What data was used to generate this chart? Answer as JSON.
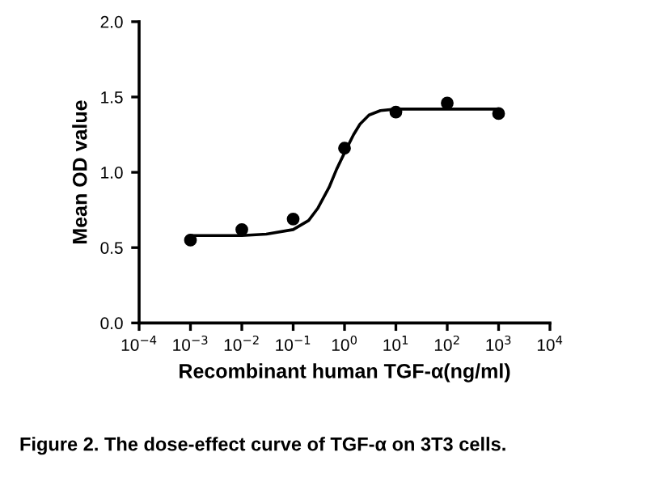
{
  "chart_data": {
    "type": "scatter",
    "title": "Figure 2. The dose-effect curve of TGF-α on 3T3 cells.",
    "xlabel": "Recombinant human TGF-α(ng/ml)",
    "ylabel": "Mean OD value",
    "log": "x",
    "grid": false,
    "marker": "circle",
    "series": [
      {
        "color": "#000000",
        "x": [
          0.001,
          0.01,
          0.1,
          1,
          10,
          100,
          1000
        ],
        "values": [
          0.55,
          0.62,
          0.69,
          1.16,
          1.4,
          1.46,
          1.39
        ]
      },
      {
        "type": "line",
        "color": "#000000",
        "marker": "none",
        "line_style": "solid",
        "x": [
          0.001,
          0.01,
          0.03,
          0.1,
          0.2,
          0.3,
          0.5,
          0.7,
          1,
          1.5,
          2,
          3,
          5,
          10,
          100,
          1000
        ],
        "values": [
          0.58,
          0.58,
          0.59,
          0.62,
          0.68,
          0.76,
          0.9,
          1.02,
          1.13,
          1.25,
          1.32,
          1.38,
          1.41,
          1.42,
          1.42,
          1.42
        ]
      }
    ],
    "xlim": [
      0.0001,
      10000
    ],
    "ylim": [
      0,
      2.0
    ],
    "xticks": [
      {
        "value": 0.0001,
        "label": "10$^{−4}$"
      },
      {
        "value": 0.001,
        "label": "10$^{−3}$"
      },
      {
        "value": 0.01,
        "label": "10$^{−2}$"
      },
      {
        "value": 0.1,
        "label": "10$^{−1}$"
      },
      {
        "value": 1,
        "label": "10$^{0}$"
      },
      {
        "value": 10,
        "label": "10$^{1}$"
      },
      {
        "value": 100,
        "label": "10$^{2}$"
      },
      {
        "value": 1000,
        "label": "10$^{3}$"
      },
      {
        "value": 10000,
        "label": "10$^{4}$"
      }
    ],
    "yticks": [
      {
        "value": 0,
        "label": "0.0"
      },
      {
        "value": 0.5,
        "label": "0.5"
      },
      {
        "value": 1.0,
        "label": "1.0"
      },
      {
        "value": 1.5,
        "label": "1.5"
      },
      {
        "value": 2.0,
        "label": "2.0"
      }
    ]
  }
}
